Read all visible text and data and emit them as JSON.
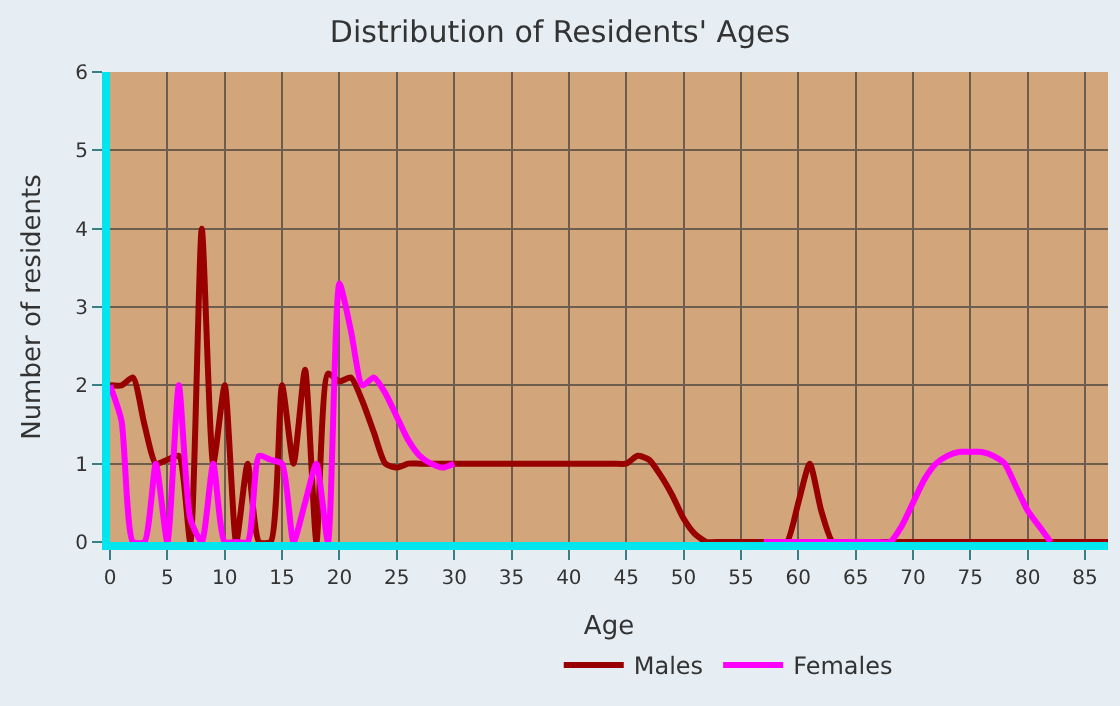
{
  "chart_data": {
    "type": "line",
    "title": "Distribution of Residents' Ages",
    "xlabel": "Age",
    "ylabel": "Number of residents",
    "x": [
      0,
      1,
      2,
      3,
      4,
      5,
      6,
      7,
      8,
      9,
      10,
      11,
      12,
      13,
      14,
      15,
      16,
      17,
      18,
      19,
      20,
      21,
      22,
      23,
      24,
      25,
      26,
      27,
      28,
      29,
      30,
      31,
      32,
      33,
      34,
      35,
      36,
      37,
      38,
      39,
      40,
      41,
      42,
      43,
      44,
      45,
      46,
      47,
      48,
      49,
      50,
      51,
      52,
      53,
      54,
      55,
      56,
      57,
      58,
      59,
      60,
      61,
      62,
      63,
      64,
      65,
      66,
      67,
      68,
      69,
      70,
      71,
      72,
      73,
      74,
      75,
      76,
      77,
      78,
      79,
      80,
      81,
      82,
      83,
      84,
      85,
      86,
      87
    ],
    "series": [
      {
        "name": "Males",
        "color": "#990000",
        "values": [
          2,
          2,
          2.1,
          1.5,
          1,
          1.05,
          1.1,
          0,
          4,
          1,
          2,
          0,
          1,
          0,
          0,
          2,
          1,
          2.2,
          0,
          2.15,
          2.05,
          2.1,
          1.8,
          1.4,
          1,
          0.95,
          1,
          1,
          1,
          1,
          1,
          1,
          1,
          1,
          1,
          1,
          1,
          1,
          1,
          1,
          1,
          1,
          1,
          1,
          1,
          1,
          1.1,
          1.05,
          0.85,
          0.6,
          0.3,
          0.1,
          0,
          0,
          0,
          0,
          0,
          0,
          0,
          0,
          0.5,
          1,
          0.4,
          0,
          0,
          0,
          0,
          0,
          0,
          0,
          0,
          0,
          0,
          0,
          0,
          0,
          0,
          0,
          0,
          0,
          0,
          0,
          0,
          0,
          0,
          0,
          0,
          0
        ]
      },
      {
        "name": "Females",
        "color": "#ff00ff",
        "values": [
          2,
          1.55,
          0,
          0,
          1,
          0,
          2,
          0.3,
          0,
          1,
          0,
          0,
          0,
          1.1,
          1.05,
          1,
          0,
          0.5,
          1,
          0,
          3.3,
          2.7,
          2,
          2.1,
          1.9,
          1.6,
          1.3,
          1.1,
          1,
          0.95,
          1,
          null,
          null,
          null,
          null,
          null,
          null,
          null,
          null,
          null,
          null,
          null,
          null,
          null,
          null,
          null,
          null,
          null,
          null,
          null,
          null,
          null,
          null,
          null,
          null,
          null,
          null,
          0,
          0,
          0,
          0,
          0,
          0,
          0,
          0,
          0,
          0,
          0,
          0,
          0.2,
          0.5,
          0.8,
          1,
          1.1,
          1.15,
          1.15,
          1.15,
          1.1,
          1,
          0.7,
          0.4,
          0.2,
          0,
          null,
          null,
          null,
          null,
          null
        ]
      }
    ],
    "xlim": [
      0,
      87
    ],
    "xticks": [
      0,
      5,
      10,
      15,
      20,
      25,
      30,
      35,
      40,
      45,
      50,
      55,
      60,
      65,
      70,
      75,
      80,
      85
    ],
    "ylim": [
      0,
      6
    ],
    "yticks": [
      0,
      1,
      2,
      3,
      4,
      5,
      6
    ],
    "grid": true,
    "legend": "bottom",
    "line_style": "solid",
    "marker": "none"
  }
}
